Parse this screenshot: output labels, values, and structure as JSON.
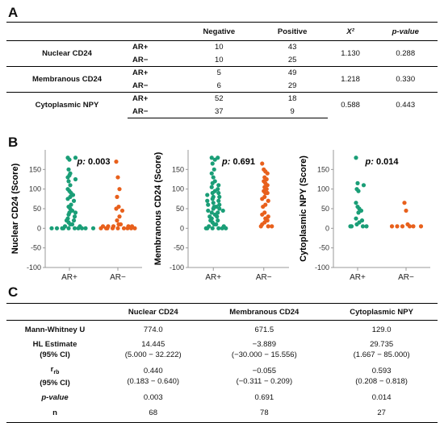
{
  "labels": {
    "a": "A",
    "b": "B",
    "c": "C"
  },
  "tableA": {
    "headers": [
      "",
      "",
      "Negative",
      "Positive",
      "X²",
      "p-value"
    ],
    "groups": [
      {
        "name": "Nuclear CD24",
        "rows": [
          {
            "ar": "AR+",
            "neg": "10",
            "pos": "43"
          },
          {
            "ar": "AR−",
            "neg": "10",
            "pos": "25"
          }
        ],
        "chi2": "1.130",
        "p": "0.288"
      },
      {
        "name": "Membranous CD24",
        "rows": [
          {
            "ar": "AR+",
            "neg": "5",
            "pos": "49"
          },
          {
            "ar": "AR−",
            "neg": "6",
            "pos": "29"
          }
        ],
        "chi2": "1.218",
        "p": "0.330"
      },
      {
        "name": "Cytoplasmic NPY",
        "rows": [
          {
            "ar": "AR+",
            "neg": "52",
            "pos": "18"
          },
          {
            "ar": "AR−",
            "neg": "37",
            "pos": "9"
          }
        ],
        "chi2": "0.588",
        "p": "0.443"
      }
    ]
  },
  "tableC": {
    "headers": [
      "",
      "Nuclear CD24",
      "Membranous CD24",
      "Cytoplasmic NPY"
    ],
    "rows": [
      {
        "label": "Mann-Whitney U",
        "vals": [
          "774.0",
          "671.5",
          "129.0"
        ]
      },
      {
        "label": "HL Estimate",
        "label2": "(95% CI)",
        "vals": [
          "14.445",
          "−3.889",
          "29.735"
        ],
        "vals2": [
          "(5.000 − 32.222)",
          "(−30.000 − 15.556)",
          "(1.667 − 85.000)"
        ]
      },
      {
        "label": "r",
        "labelsub": "rb",
        "label2": "(95% CI)",
        "vals": [
          "0.440",
          "−0.055",
          "0.593"
        ],
        "vals2": [
          "(0.183 − 0.640)",
          "(−0.311 − 0.209)",
          "(0.208 − 0.818)"
        ]
      },
      {
        "label": "p-value",
        "vals": [
          "0.003",
          "0.691",
          "0.014"
        ]
      },
      {
        "label": "n",
        "vals": [
          "68",
          "78",
          "27"
        ]
      }
    ]
  },
  "colors": {
    "ar_pos": "#1a9e77",
    "ar_neg": "#e8601c"
  },
  "chart_data": [
    {
      "type": "scatter",
      "title": "",
      "annotation_label": "p:",
      "annotation_value": "0.003",
      "ylabel": "Nuclear CD24 (Score)",
      "ylim": [
        -100,
        200
      ],
      "yticks": [
        -100,
        -50,
        0,
        50,
        100,
        150
      ],
      "categories": [
        "AR+",
        "AR−"
      ],
      "series": [
        {
          "name": "AR+",
          "values": [
            180,
            175,
            180,
            150,
            140,
            130,
            135,
            125,
            120,
            110,
            100,
            95,
            90,
            85,
            80,
            75,
            70,
            60,
            55,
            50,
            45,
            40,
            40,
            35,
            30,
            25,
            20,
            20,
            15,
            10,
            10,
            5,
            5,
            0,
            0,
            0,
            0,
            0,
            0,
            0,
            0,
            0,
            0
          ]
        },
        {
          "name": "AR−",
          "values": [
            170,
            130,
            100,
            80,
            55,
            50,
            45,
            30,
            20,
            10,
            10,
            5,
            5,
            5,
            5,
            5,
            0,
            0,
            0,
            0,
            0,
            0,
            0,
            0,
            0
          ]
        }
      ]
    },
    {
      "type": "scatter",
      "title": "",
      "annotation_label": "p:",
      "annotation_value": "0.691",
      "ylabel": "Membranous CD24 (Score)",
      "ylim": [
        -100,
        200
      ],
      "yticks": [
        -100,
        -50,
        0,
        50,
        100,
        150
      ],
      "categories": [
        "AR+",
        "AR−"
      ],
      "series": [
        {
          "name": "AR+",
          "values": [
            180,
            180,
            175,
            165,
            150,
            140,
            130,
            120,
            115,
            110,
            105,
            100,
            95,
            90,
            90,
            85,
            80,
            80,
            75,
            70,
            70,
            65,
            60,
            60,
            55,
            55,
            50,
            50,
            45,
            45,
            40,
            40,
            35,
            30,
            30,
            25,
            20,
            20,
            15,
            10,
            10,
            5,
            5,
            0,
            0,
            0,
            0,
            0,
            0
          ]
        },
        {
          "name": "AR−",
          "values": [
            165,
            150,
            145,
            140,
            130,
            125,
            120,
            115,
            110,
            105,
            100,
            95,
            90,
            90,
            80,
            75,
            70,
            60,
            55,
            40,
            35,
            30,
            25,
            20,
            15,
            10,
            5,
            5,
            5
          ]
        }
      ]
    },
    {
      "type": "scatter",
      "title": "",
      "annotation_label": "p:",
      "annotation_value": "0.014",
      "ylabel": "Cytoplasmic NPY (Score)",
      "ylim": [
        -100,
        200
      ],
      "yticks": [
        -100,
        -50,
        0,
        50,
        100,
        150
      ],
      "categories": [
        "AR+",
        "AR−"
      ],
      "series": [
        {
          "name": "AR+",
          "values": [
            180,
            115,
            110,
            100,
            95,
            65,
            55,
            50,
            45,
            40,
            25,
            20,
            15,
            10,
            5,
            5,
            5,
            5
          ]
        },
        {
          "name": "AR−",
          "values": [
            65,
            45,
            10,
            5,
            5,
            5,
            5,
            5,
            5
          ]
        }
      ]
    }
  ]
}
